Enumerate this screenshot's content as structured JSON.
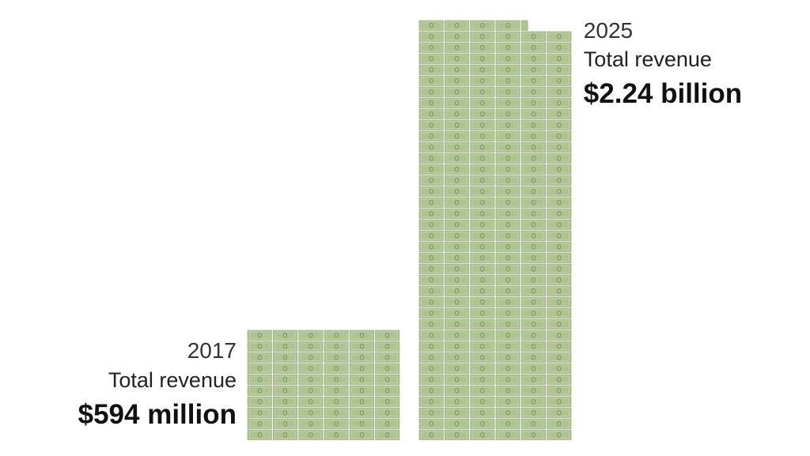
{
  "chart_data": {
    "type": "pictogram",
    "categories": [
      "2017",
      "2025"
    ],
    "caption": "Total revenue",
    "values": [
      594,
      2240
    ],
    "value_labels": [
      "$594 million",
      "$2.24 billion"
    ],
    "color": "#aec38f"
  }
}
